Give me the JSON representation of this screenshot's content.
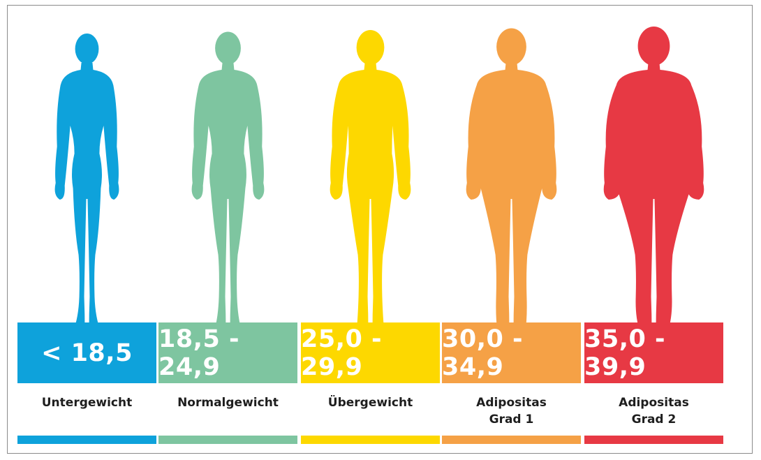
{
  "categories": [
    {
      "value": "< 18,5",
      "label_lines": [
        "Untergewicht"
      ],
      "color": "#0ea2db",
      "body_shape": "underweight"
    },
    {
      "value": "18,5 - 24,9",
      "label_lines": [
        "Normalgewicht"
      ],
      "color": "#7ec5a0",
      "body_shape": "normal"
    },
    {
      "value": "25,0 - 29,9",
      "label_lines": [
        "Übergewicht"
      ],
      "color": "#fdd800",
      "body_shape": "overweight"
    },
    {
      "value": "30,0 - 34,9",
      "label_lines": [
        "Adipositas",
        "Grad 1"
      ],
      "color": "#f5a146",
      "body_shape": "obese-1"
    },
    {
      "value": "35,0 - 39,9",
      "label_lines": [
        "Adipositas",
        "Grad 2"
      ],
      "color": "#e73944",
      "body_shape": "obese-2"
    }
  ]
}
